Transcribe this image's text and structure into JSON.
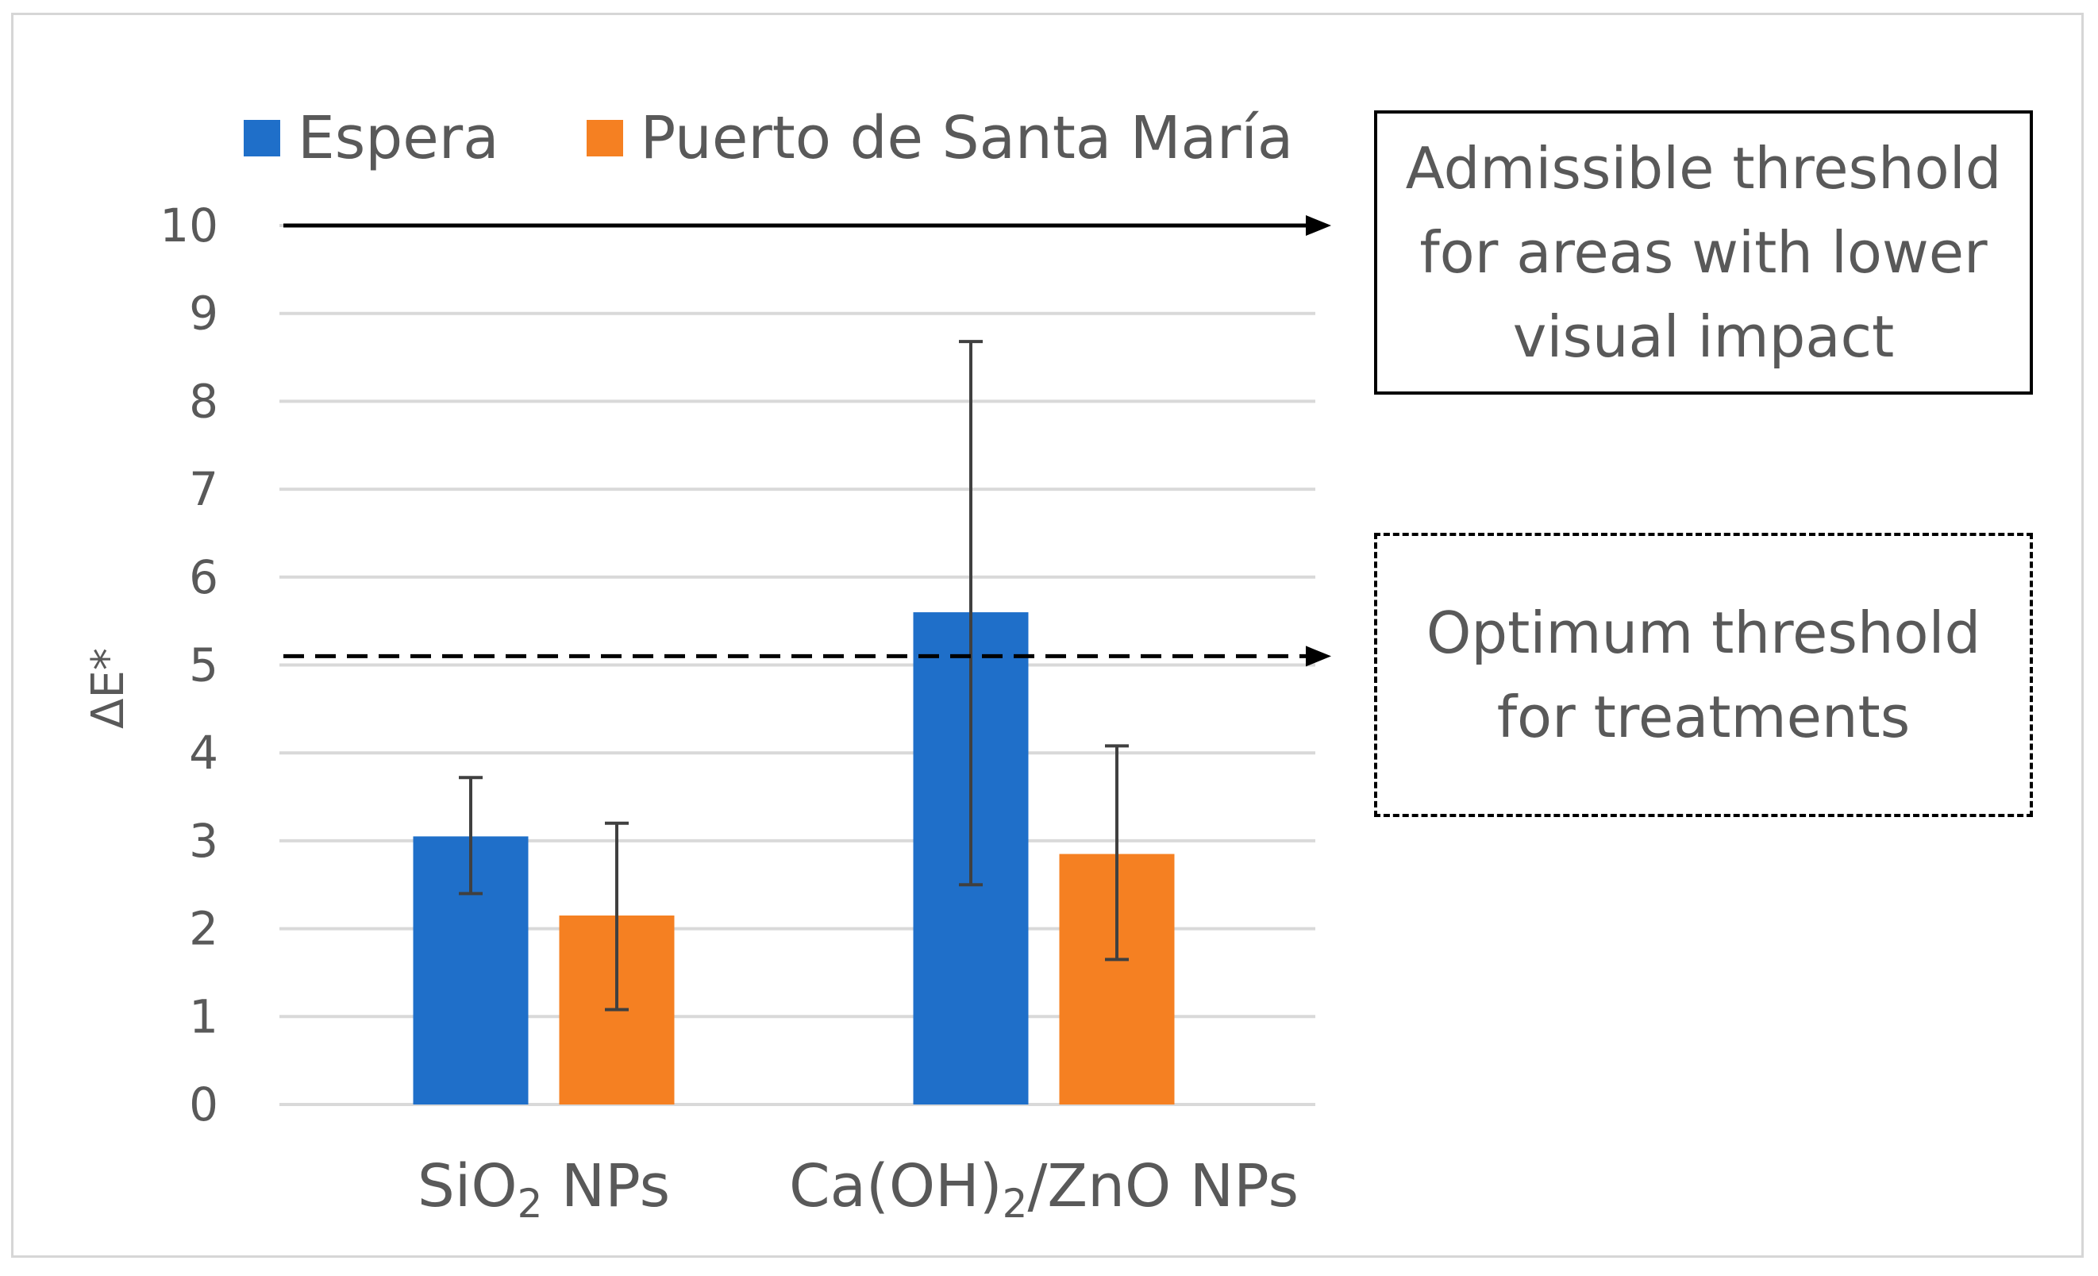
{
  "chart_data": {
    "type": "bar",
    "categories": [
      "SiO2 NPs",
      "Ca(OH)2/ZnO NPs"
    ],
    "category_labels": [
      {
        "pre": "SiO",
        "sub": "2",
        "post": " NPs"
      },
      {
        "pre": "Ca(OH)",
        "sub": "2",
        "post": "/ZnO NPs"
      }
    ],
    "series": [
      {
        "name": "Espera",
        "color": "#1f6fc9",
        "values": [
          3.05,
          5.6
        ],
        "error_low": [
          2.4,
          2.5
        ],
        "error_high": [
          3.72,
          8.68
        ]
      },
      {
        "name": "Puerto de Santa María",
        "color": "#f58022",
        "values": [
          2.15,
          2.85
        ],
        "error_low": [
          1.08,
          1.65
        ],
        "error_high": [
          3.2,
          4.08
        ]
      }
    ],
    "title": "",
    "xlabel": "",
    "ylabel": "ΔE*",
    "ylim": [
      0,
      10
    ],
    "yticks": [
      "0",
      "1",
      "2",
      "3",
      "4",
      "5",
      "6",
      "7",
      "8",
      "9",
      "10"
    ],
    "grid": true,
    "legend_position": "top-left",
    "thresholds": [
      {
        "name": "admissible",
        "value": 10,
        "style": "solid",
        "label_lines": [
          "Admissible threshold",
          "for areas with lower",
          "visual impact"
        ]
      },
      {
        "name": "optimum",
        "value": 5.1,
        "style": "dashed",
        "label_lines": [
          "Optimum threshold",
          "for treatments"
        ]
      }
    ]
  }
}
